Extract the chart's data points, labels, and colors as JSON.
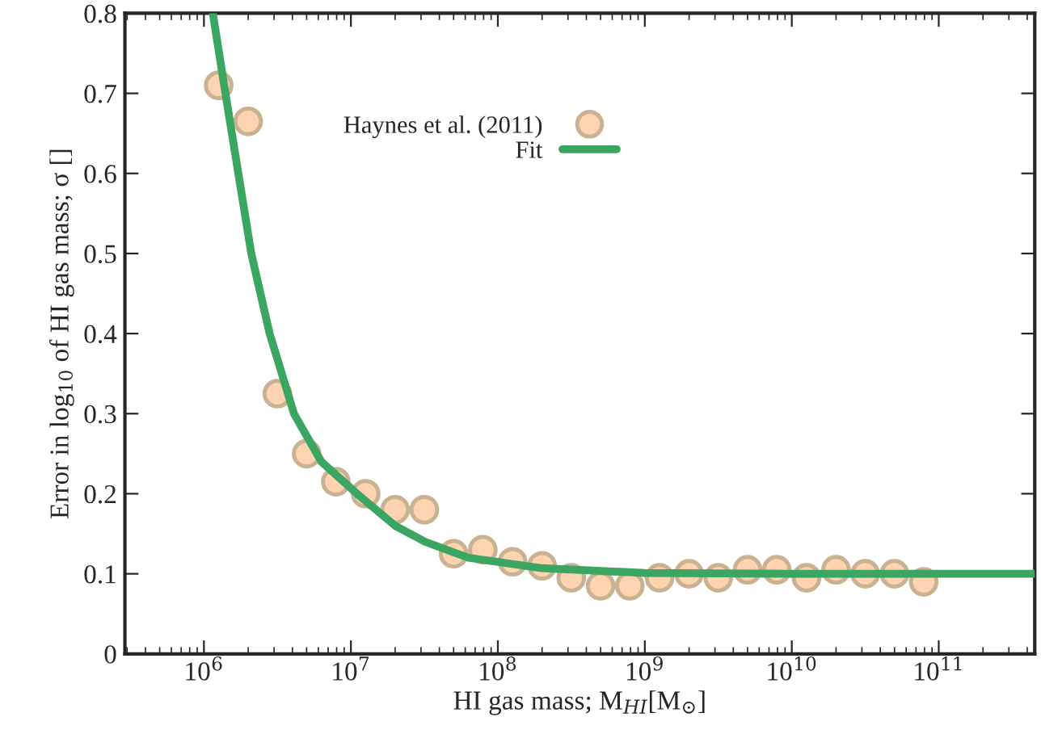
{
  "chart_data": {
    "type": "scatter",
    "xlabel": "HI gas mass; M$_{HI}$[M$_{⊙}$]",
    "ylabel": "Error in log$_{10}$ of HI gas mass; σ []",
    "log": "x",
    "xlim": [
      290000,
      450000000000
    ],
    "xticks": [
      {
        "value": 1000000,
        "label": "10$^{6}$"
      },
      {
        "value": 10000000,
        "label": "10$^{7}$"
      },
      {
        "value": 100000000,
        "label": "10$^{8}$"
      },
      {
        "value": 1000000000,
        "label": "10$^{9}$"
      },
      {
        "value": 10000000000,
        "label": "10$^{10}$"
      },
      {
        "value": 100000000000,
        "label": "10$^{11}$"
      }
    ],
    "ylim": [
      0,
      0.8
    ],
    "yticks": [
      0,
      0.1,
      0.2,
      0.3,
      0.4,
      0.5,
      0.6,
      0.7,
      0.8
    ],
    "grid": false,
    "legend": "top",
    "series": [
      {
        "name": "Haynes et al. (2011)",
        "marker": "circle",
        "color": "#fdd3b0",
        "x": [
          1260000,
          2000000,
          3160000,
          5000000,
          7900000,
          12600000,
          20000000,
          31600000,
          50000000,
          79000000,
          126000000,
          200000000,
          316000000,
          500000000,
          790000000,
          1260000000,
          2000000000,
          3160000000,
          5000000000,
          7900000000,
          12600000000,
          20000000000,
          31600000000,
          50000000000,
          79000000000
        ],
        "values": [
          0.71,
          0.665,
          0.325,
          0.25,
          0.215,
          0.2,
          0.18,
          0.18,
          0.125,
          0.13,
          0.115,
          0.11,
          0.095,
          0.085,
          0.085,
          0.095,
          0.1,
          0.095,
          0.105,
          0.105,
          0.095,
          0.105,
          0.1,
          0.1,
          0.09
        ]
      },
      {
        "name": "Fit",
        "type": "line",
        "marker": "none",
        "line_style": "solid",
        "color": "#3aa662",
        "x": [
          1150000,
          1400000,
          2100000,
          2800000,
          4100000,
          6300000,
          11000000,
          20000000,
          32000000,
          63000000,
          200000000,
          1000000000,
          10000000000,
          450000000000
        ],
        "values": [
          0.8,
          0.7,
          0.5,
          0.4,
          0.3,
          0.24,
          0.2,
          0.16,
          0.14,
          0.12,
          0.107,
          0.101,
          0.1,
          0.1
        ]
      }
    ]
  }
}
